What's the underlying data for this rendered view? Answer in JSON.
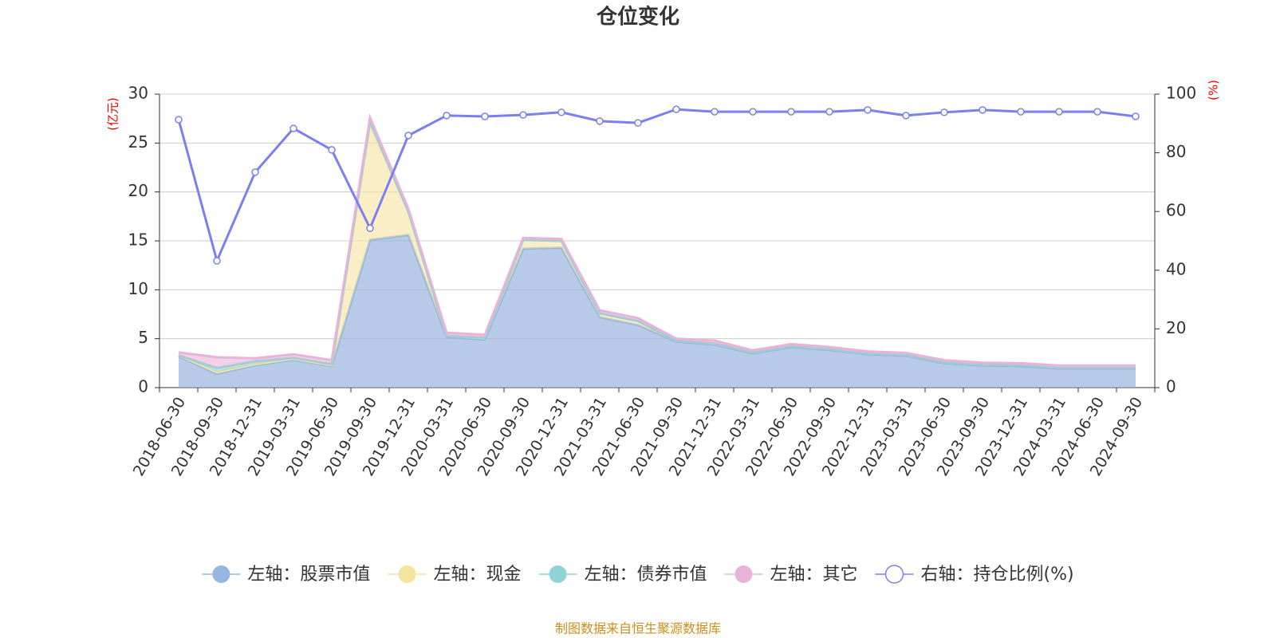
{
  "chart_data": {
    "type": "stacked-area-line",
    "title": "仓位变化",
    "y_unit": "(亿元)",
    "y2_unit": "(%)",
    "source": "制图数据来自恒生聚源数据库",
    "categories": [
      "2018-06-30",
      "2018-09-30",
      "2018-12-31",
      "2019-03-31",
      "2019-06-30",
      "2019-09-30",
      "2019-12-31",
      "2020-03-31",
      "2020-06-30",
      "2020-09-30",
      "2020-12-31",
      "2021-03-31",
      "2021-06-30",
      "2021-09-30",
      "2021-12-31",
      "2022-03-31",
      "2022-06-30",
      "2022-09-30",
      "2022-12-31",
      "2023-03-31",
      "2023-06-30",
      "2023-09-30",
      "2023-12-31",
      "2024-03-31",
      "2024-06-30",
      "2024-09-30"
    ],
    "series": [
      {
        "name": "左轴：股票市值",
        "color": "#98b5e0",
        "values": [
          3.2,
          1.4,
          2.3,
          2.85,
          2.2,
          15.1,
          15.6,
          5.2,
          4.9,
          14.2,
          14.3,
          7.2,
          6.4,
          4.7,
          4.4,
          3.5,
          4.15,
          3.85,
          3.4,
          3.25,
          2.5,
          2.25,
          2.2,
          1.95,
          1.95,
          1.95
        ]
      },
      {
        "name": "左轴：现金",
        "color": "#f5e3a0",
        "values": [
          0.1,
          0.2,
          0.1,
          0.1,
          0.1,
          11.8,
          2.4,
          0.1,
          0.2,
          0.9,
          0.7,
          0.4,
          0.4,
          0.1,
          0.1,
          0.1,
          0.1,
          0.1,
          0.1,
          0.1,
          0.1,
          0.1,
          0.1,
          0.1,
          0.1,
          0.1
        ]
      },
      {
        "name": "左轴：债券市值",
        "color": "#8fd3d6",
        "values": [
          0,
          0.4,
          0.3,
          0.1,
          0.1,
          0.3,
          0,
          0,
          0,
          0,
          0,
          0,
          0,
          0,
          0,
          0,
          0,
          0,
          0,
          0,
          0,
          0,
          0,
          0,
          0,
          0
        ]
      },
      {
        "name": "左轴：其它",
        "color": "#e8b3d9",
        "values": [
          0.3,
          1.1,
          0.3,
          0.35,
          0.4,
          0.4,
          0.3,
          0.3,
          0.3,
          0.2,
          0.2,
          0.3,
          0.3,
          0.2,
          0.3,
          0.2,
          0.2,
          0.2,
          0.2,
          0.2,
          0.2,
          0.2,
          0.2,
          0.2,
          0.2,
          0.2
        ]
      },
      {
        "name": "右轴：持仓比例(%)",
        "color": "#7b7ff0",
        "axis": "y2",
        "values": [
          91.3,
          43.2,
          73.4,
          88.3,
          81,
          54.3,
          85.9,
          92.7,
          92.4,
          92.9,
          93.8,
          90.8,
          90.2,
          94.8,
          94,
          94,
          94,
          94,
          94.6,
          92.7,
          93.8,
          94.6,
          94,
          94,
          94,
          92.4
        ]
      }
    ],
    "ylim": [
      0,
      30
    ],
    "yticks": [
      0,
      5,
      10,
      15,
      20,
      25,
      30
    ],
    "y2lim": [
      0,
      100
    ],
    "y2ticks": [
      0,
      20,
      40,
      60,
      80,
      100
    ],
    "grid": true
  }
}
